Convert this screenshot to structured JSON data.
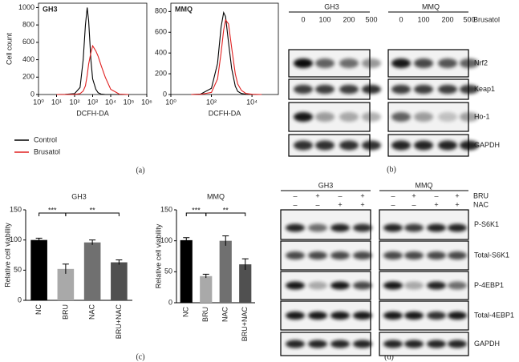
{
  "chart_data": [
    {
      "type": "line",
      "title": "GH3",
      "x_label": "DCFH-DA",
      "y_label": "Cell count",
      "log_x": true,
      "x": [
        10,
        30,
        100,
        200,
        300,
        400,
        500,
        600,
        800,
        1000,
        1500,
        2000,
        3000,
        5000,
        10000,
        30000,
        100000
      ],
      "series": [
        {
          "name": "Control",
          "color": "#000000",
          "values": [
            0,
            2,
            10,
            80,
            400,
            800,
            1000,
            850,
            400,
            180,
            60,
            20,
            5,
            0,
            0,
            0,
            0
          ]
        },
        {
          "name": "Brusatol",
          "color": "#e02020",
          "values": [
            0,
            0,
            2,
            10,
            40,
            100,
            220,
            350,
            480,
            560,
            500,
            440,
            330,
            200,
            60,
            5,
            0
          ]
        }
      ],
      "xlim": [
        1,
        1000000
      ],
      "xticks": [
        {
          "value": 1,
          "label": "10⁰"
        },
        {
          "value": 10,
          "label": "10¹"
        },
        {
          "value": 100,
          "label": "10²"
        },
        {
          "value": 1000,
          "label": "10³"
        },
        {
          "value": 10000,
          "label": "10⁴"
        },
        {
          "value": 100000,
          "label": "10⁵"
        },
        {
          "value": 1000000,
          "label": "10⁶"
        }
      ],
      "ylim": [
        0,
        1050
      ],
      "yticks": [
        0,
        200,
        400,
        600,
        800,
        1000
      ]
    },
    {
      "type": "line",
      "title": "MMQ",
      "x_label": "DCFH-DA",
      "log_x": true,
      "x": [
        10,
        30,
        100,
        200,
        300,
        400,
        500,
        700,
        1000,
        1500,
        2000,
        3000,
        5000,
        10000,
        30000
      ],
      "series": [
        {
          "name": "Control",
          "color": "#000000",
          "values": [
            0,
            5,
            60,
            300,
            650,
            790,
            750,
            500,
            250,
            80,
            30,
            10,
            2,
            0,
            0
          ]
        },
        {
          "name": "Brusatol",
          "color": "#e02020",
          "values": [
            0,
            2,
            20,
            150,
            400,
            620,
            720,
            680,
            450,
            200,
            100,
            40,
            10,
            2,
            0
          ]
        }
      ],
      "xlim": [
        1,
        200000
      ],
      "xticks": [
        {
          "value": 1,
          "label": "10⁰"
        },
        {
          "value": 100,
          "label": "10²"
        },
        {
          "value": 10000,
          "label": "10⁴"
        }
      ],
      "ylim": [
        0,
        880
      ],
      "yticks": [
        0,
        200,
        400,
        600,
        800
      ]
    },
    {
      "type": "bar",
      "title": "GH3",
      "y_label": "Relative cell viability",
      "categories": [
        "NC",
        "BRU",
        "NAC",
        "BRU+NAC"
      ],
      "values": [
        100,
        52,
        96,
        63
      ],
      "errors": [
        3,
        8,
        4,
        4
      ],
      "colors": [
        "#000000",
        "#a9a9a9",
        "#707070",
        "#505050"
      ],
      "annotations": [
        "***",
        "**"
      ],
      "ylim": [
        0,
        150
      ],
      "yticks": [
        0,
        50,
        100,
        150
      ]
    },
    {
      "type": "bar",
      "title": "MMQ",
      "y_label": "Relative cell viability",
      "categories": [
        "NC",
        "BRU",
        "NAC",
        "BRU+NAC"
      ],
      "values": [
        101,
        43,
        100,
        62
      ],
      "errors": [
        4,
        3,
        8,
        9
      ],
      "colors": [
        "#000000",
        "#a9a9a9",
        "#707070",
        "#505050"
      ],
      "annotations": [
        "***",
        "**"
      ],
      "ylim": [
        0,
        150
      ],
      "yticks": [
        0,
        50,
        100,
        150
      ]
    }
  ],
  "panel_labels": [
    "(a)",
    "(b)",
    "(c)",
    "(d)"
  ],
  "blots": [
    {
      "groups": [
        "GH3",
        "MMQ"
      ],
      "treatment": "Brusatol",
      "doses": [
        "0",
        "100",
        "200",
        "500"
      ],
      "rows": [
        "Nrf2",
        "Keap1",
        "Ho-1",
        "GAPDH"
      ]
    },
    {
      "groups": [
        "GH3",
        "MMQ"
      ],
      "treatments": [
        {
          "name": "BRU",
          "signs": [
            "–",
            "+",
            "–",
            "+"
          ]
        },
        {
          "name": "NAC",
          "signs": [
            "–",
            "–",
            "+",
            "+"
          ]
        }
      ],
      "rows": [
        "P-S6K1",
        "Total-S6K1",
        "P-4EBP1",
        "Total-4EBP1",
        "GAPDH"
      ]
    }
  ]
}
